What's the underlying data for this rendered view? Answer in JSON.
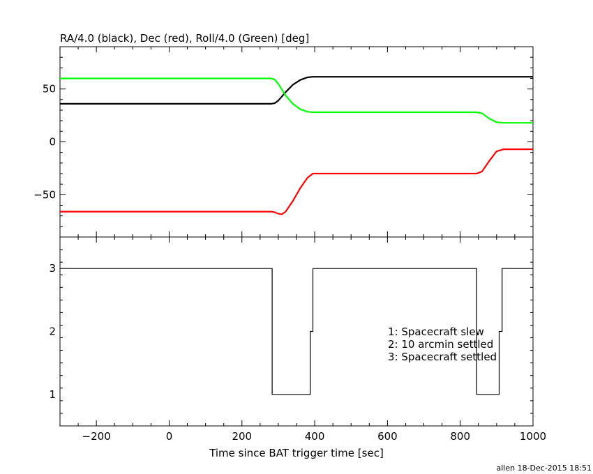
{
  "chart_data": [
    {
      "type": "line",
      "title": "RA/4.0 (black), Dec (red), Roll/4.0 (Green) [deg]",
      "xlim": [
        -300,
        1000
      ],
      "ylim": [
        -90,
        90
      ],
      "yticks": [
        -50,
        0,
        50
      ],
      "yticklabels": [
        "−50",
        "0",
        "50"
      ],
      "series": [
        {
          "color": "#000000",
          "x": [
            -300,
            280,
            290,
            300,
            320,
            340,
            360,
            380,
            395,
            500,
            700,
            900,
            1000
          ],
          "y": [
            36,
            36,
            36.5,
            39,
            47,
            54,
            58.5,
            61,
            61.5,
            61.5,
            61.5,
            61.5,
            61.5
          ]
        },
        {
          "color": "#ff0000",
          "x": [
            -300,
            280,
            290,
            300,
            310,
            320,
            340,
            360,
            380,
            395,
            500,
            700,
            845,
            860,
            880,
            900,
            920,
            1000
          ],
          "y": [
            -66,
            -66,
            -66.5,
            -68,
            -68.5,
            -66,
            -56,
            -44,
            -34,
            -30,
            -30,
            -30,
            -30,
            -28,
            -18,
            -9,
            -7,
            -7
          ]
        },
        {
          "color": "#00ff00",
          "x": [
            -300,
            280,
            290,
            300,
            320,
            340,
            360,
            380,
            395,
            500,
            700,
            845,
            860,
            880,
            900,
            920,
            1000
          ],
          "y": [
            60,
            60,
            59,
            55,
            44,
            36,
            31,
            28.5,
            28,
            28,
            28,
            28,
            27,
            22,
            18.5,
            18,
            18
          ]
        }
      ]
    },
    {
      "type": "line",
      "xlabel": "Time since BAT trigger time [sec]",
      "xlim": [
        -300,
        1000
      ],
      "ylim": [
        0.5,
        3.5
      ],
      "xticks": [
        -200,
        0,
        200,
        400,
        600,
        800,
        1000
      ],
      "xticklabels": [
        "−200",
        "0",
        "200",
        "400",
        "600",
        "800",
        "1000"
      ],
      "yticks": [
        1,
        2,
        3
      ],
      "yticklabels": [
        "1",
        "2",
        "3"
      ],
      "annotations": [
        "1: Spacecraft slew",
        "2: 10 arcmin settled",
        "3: Spacecraft settled"
      ],
      "series": [
        {
          "color": "#000000",
          "x": [
            -300,
            283,
            283,
            388,
            388,
            395,
            395,
            845,
            845,
            907,
            907,
            915,
            915,
            1000
          ],
          "y": [
            3,
            3,
            1,
            1,
            2,
            2,
            3,
            3,
            1,
            1,
            2,
            2,
            3,
            3
          ]
        }
      ]
    }
  ],
  "footer": "allen 18-Dec-2015 18:51"
}
